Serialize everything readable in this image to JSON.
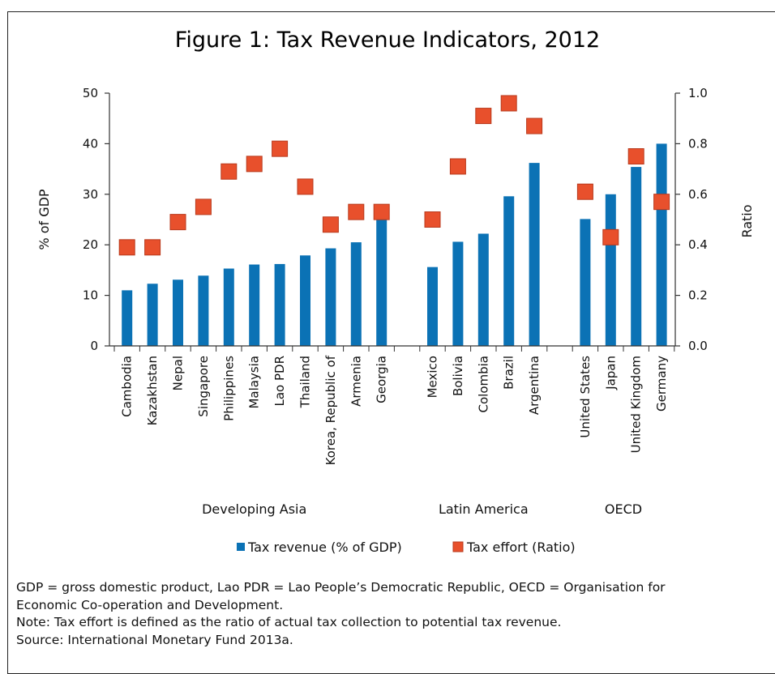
{
  "chart_data": {
    "type": "bar",
    "title": "Figure 1: Tax Revenue Indicators, 2012",
    "ylabel": "% of GDP",
    "y2label": "Ratio",
    "ylim": [
      0,
      50
    ],
    "y2lim": [
      0.0,
      1.0
    ],
    "yticks": [
      "0",
      "10",
      "20",
      "30",
      "40",
      "50"
    ],
    "y2ticks": [
      "0.0",
      "0.2",
      "0.4",
      "0.6",
      "0.8",
      "1.0"
    ],
    "groups": [
      {
        "name": "Developing Asia",
        "categories": [
          "Cambodia",
          "Kazakhstan",
          "Nepal",
          "Singapore",
          "Philippines",
          "Malaysia",
          "Lao PDR",
          "Thailand",
          "Korea, Republic of",
          "Armenia",
          "Georgia"
        ]
      },
      {
        "name": "Latin America",
        "categories": [
          "Mexico",
          "Bolivia",
          "Colombia",
          "Brazil",
          "Argentina"
        ]
      },
      {
        "name": "OECD",
        "categories": [
          "United States",
          "Japan",
          "United Kingdom",
          "Germany"
        ]
      }
    ],
    "series": [
      {
        "name": "Tax revenue (% of GDP)",
        "type": "bar",
        "axis": "left",
        "color": "#0b72b5",
        "values": [
          11.0,
          12.3,
          13.1,
          13.9,
          15.3,
          16.1,
          16.2,
          17.9,
          19.3,
          20.5,
          25.2,
          15.6,
          20.6,
          22.2,
          29.6,
          36.2,
          25.1,
          30.0,
          35.4,
          40.0
        ]
      },
      {
        "name": "Tax effort (Ratio)",
        "type": "scatter",
        "axis": "right",
        "color": "#e8502c",
        "values": [
          0.39,
          0.39,
          0.49,
          0.55,
          0.69,
          0.72,
          0.78,
          0.63,
          0.48,
          0.53,
          0.53,
          0.5,
          0.71,
          0.91,
          0.96,
          0.87,
          0.61,
          0.43,
          0.75,
          0.57
        ]
      }
    ],
    "legend": "bottom"
  },
  "notes": [
    "GDP = gross domestic product, Lao PDR = Lao People’s Democratic Republic, OECD = Organisation for",
    "Economic Co-operation and Development.",
    "Note: Tax effort is defined as the ratio of actual tax collection to potential tax revenue.",
    "Source: International Monetary Fund 2013a."
  ]
}
